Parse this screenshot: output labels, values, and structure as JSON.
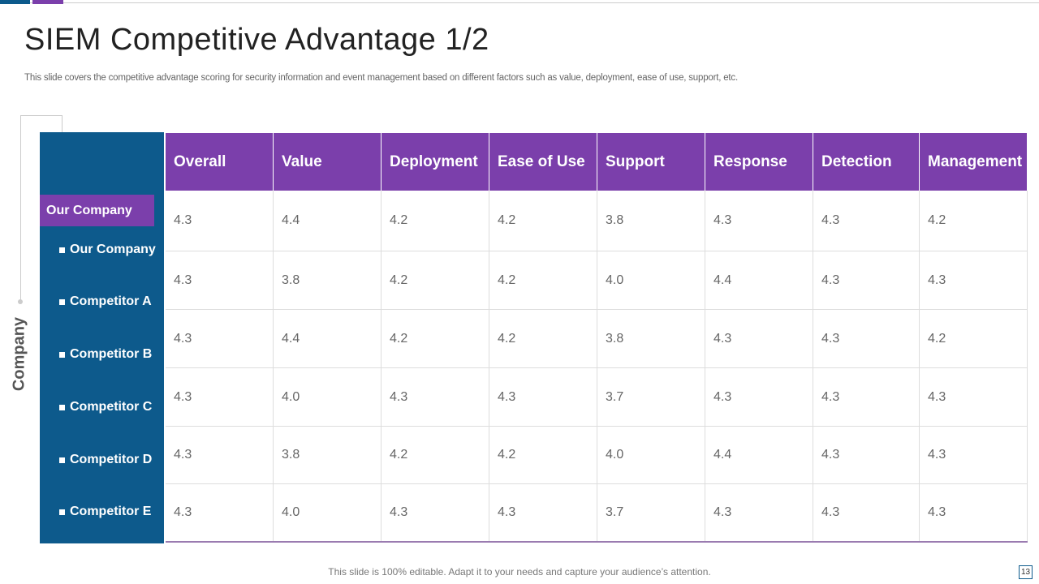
{
  "header": {
    "title": "SIEM Competitive Advantage 1/2",
    "subtitle": "This slide covers the competitive advantage scoring for security information and event management based on different factors such as value, deployment, ease of use, support, etc."
  },
  "side": {
    "axis_label": "Company",
    "highlight": "Our Company",
    "companies": [
      "Our Company",
      "Competitor A",
      "Competitor B",
      "Competitor C",
      "Competitor D",
      "Competitor E"
    ]
  },
  "table": {
    "columns": [
      "Overall",
      "Value",
      "Deployment",
      "Ease of Use",
      "Support",
      "Response",
      "Detection",
      "Management"
    ],
    "rows": [
      [
        "4.3",
        "4.4",
        "4.2",
        "4.2",
        "3.8",
        "4.3",
        "4.3",
        "4.2"
      ],
      [
        "4.3",
        "3.8",
        "4.2",
        "4.2",
        "4.0",
        "4.4",
        "4.3",
        "4.3"
      ],
      [
        "4.3",
        "4.4",
        "4.2",
        "4.2",
        "3.8",
        "4.3",
        "4.3",
        "4.2"
      ],
      [
        "4.3",
        "4.0",
        "4.3",
        "4.3",
        "3.7",
        "4.3",
        "4.3",
        "4.3"
      ],
      [
        "4.3",
        "3.8",
        "4.2",
        "4.2",
        "4.0",
        "4.4",
        "4.3",
        "4.3"
      ],
      [
        "4.3",
        "4.0",
        "4.3",
        "4.3",
        "3.7",
        "4.3",
        "4.3",
        "4.3"
      ]
    ]
  },
  "footer": {
    "note": "This slide is 100% editable. Adapt it to your needs and capture your audience’s attention.",
    "page": "13"
  }
}
